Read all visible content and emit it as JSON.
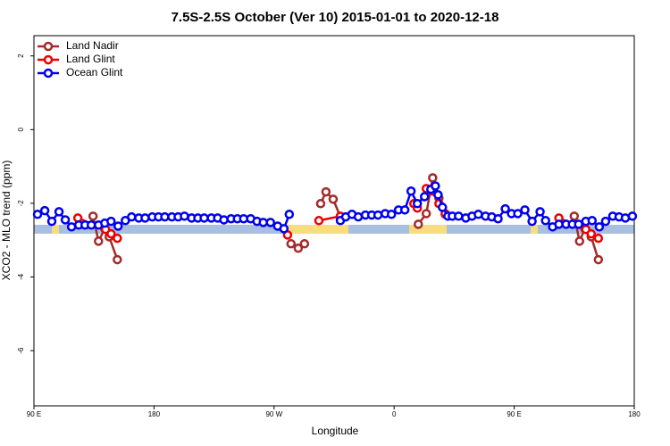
{
  "chart_data": {
    "type": "line",
    "title": "7.5S-2.5S October (Ver 10)   2015-01-01 to 2020-12-18",
    "x_label": "Longitude",
    "y_label": "XCO2 - MLO trend (ppm)",
    "xlim": [
      90,
      540
    ],
    "ylim": [
      -7.5,
      2.55
    ],
    "xticks": [
      {
        "value": 90,
        "label": "90 E"
      },
      180,
      {
        "value": 270,
        "label": "90 W"
      },
      {
        "value": 360,
        "label": "0"
      },
      {
        "value": 450,
        "label": "90 E"
      },
      {
        "value": 540,
        "label": "180"
      }
    ],
    "yticks": [
      -6,
      -4,
      -2,
      0,
      2
    ],
    "legend": "top-left",
    "series": [
      {
        "name": "Land Nadir",
        "color": "#a52a2a",
        "x": [
          134.3,
          138.4,
          143.1,
          146.4,
          152.5,
          null,
          282.7,
          288.1,
          292.8,
          null,
          304.9,
          308.9,
          314.3,
          319.7,
          null,
          378.1,
          384.1,
          388.9,
          393.6,
          398.3,
          null,
          495.0,
          499.0,
          503.0,
          507.7,
          513.1
        ],
        "values": [
          -2.35,
          -3.03,
          -2.69,
          -2.91,
          -3.53,
          null,
          -3.1,
          -3.22,
          -3.1,
          null,
          -2.01,
          -1.69,
          -1.89,
          -2.37,
          null,
          -2.57,
          -2.28,
          -1.31,
          -1.86,
          -2.3,
          null,
          -2.35,
          -3.03,
          -2.69,
          -2.91,
          -3.53
        ]
      },
      {
        "name": "Land Glint",
        "color": "#ee0000",
        "x": [
          122.9,
          143.7,
          147.8,
          152.5,
          null,
          280.1,
          null,
          303.6,
          319.7,
          null,
          374.8,
          377.4,
          384.1,
          388.9,
          393.6,
          398.3,
          null,
          483.5,
          503.7,
          507.7,
          513.1
        ],
        "values": [
          -2.4,
          -2.71,
          -2.83,
          -2.95,
          null,
          -2.86,
          null,
          -2.47,
          -2.35,
          null,
          -2.01,
          -2.13,
          -1.6,
          -1.67,
          -2.01,
          -2.28,
          null,
          -2.4,
          -2.71,
          -2.83,
          -2.95
        ]
      },
      {
        "name": "Ocean Glint",
        "color": "#0000ee",
        "x": [
          92.7,
          98.1,
          103.4,
          108.8,
          113.5,
          118.2,
          123.6,
          128.3,
          133.0,
          138.4,
          143.1,
          147.8,
          153.1,
          158.5,
          163.2,
          168.6,
          173.3,
          178.7,
          183.4,
          188.1,
          193.4,
          198.1,
          202.8,
          208.2,
          212.9,
          217.6,
          223.0,
          227.7,
          232.4,
          237.8,
          242.5,
          247.2,
          252.5,
          257.2,
          261.9,
          267.3,
          272.7,
          277.4,
          281.4,
          null,
          319.7,
          323.7,
          328.4,
          333.1,
          338.5,
          343.2,
          347.9,
          353.3,
          358.0,
          363.3,
          368.0,
          372.7,
          377.4,
          382.8,
          387.5,
          390.9,
          392.9,
          396.2,
          400.3,
          403.6,
          408.3,
          413.7,
          418.4,
          423.1,
          428.5,
          433.2,
          437.9,
          443.3,
          448.0,
          452.7,
          458.0,
          463.4,
          469.4,
          473.5,
          478.8,
          483.5,
          488.9,
          493.6,
          498.3,
          503.7,
          508.4,
          513.8,
          518.5,
          523.9,
          528.6,
          533.3,
          538.6
        ],
        "values": [
          -2.3,
          -2.2,
          -2.49,
          -2.23,
          -2.45,
          -2.64,
          -2.59,
          -2.59,
          -2.59,
          -2.59,
          -2.54,
          -2.49,
          -2.62,
          -2.47,
          -2.37,
          -2.4,
          -2.4,
          -2.37,
          -2.37,
          -2.37,
          -2.37,
          -2.37,
          -2.35,
          -2.4,
          -2.4,
          -2.4,
          -2.4,
          -2.4,
          -2.45,
          -2.42,
          -2.42,
          -2.42,
          -2.42,
          -2.49,
          -2.52,
          -2.52,
          -2.62,
          -2.69,
          -2.3,
          null,
          -2.47,
          -2.37,
          -2.3,
          -2.37,
          -2.32,
          -2.32,
          -2.32,
          -2.28,
          -2.3,
          -2.18,
          -2.18,
          -1.67,
          -2.01,
          -1.82,
          -1.62,
          -1.53,
          -1.77,
          -2.11,
          -2.35,
          -2.35,
          -2.35,
          -2.4,
          -2.35,
          -2.3,
          -2.35,
          -2.37,
          -2.42,
          -2.15,
          -2.28,
          -2.28,
          -2.18,
          -2.49,
          -2.23,
          -2.47,
          -2.64,
          -2.57,
          -2.57,
          -2.57,
          -2.57,
          -2.49,
          -2.47,
          -2.64,
          -2.49,
          -2.35,
          -2.37,
          -2.4,
          -2.35
        ]
      }
    ]
  }
}
